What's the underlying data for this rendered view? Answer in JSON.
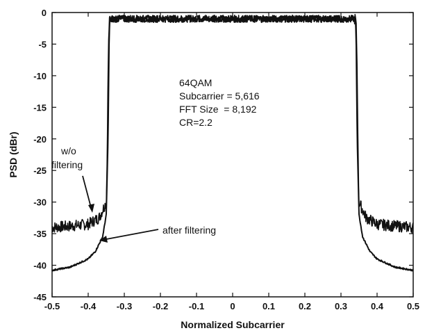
{
  "chart_data": {
    "type": "line",
    "title": "",
    "xlabel": "Normalized Subcarrier",
    "ylabel": "PSD (dBr)",
    "xlim": [
      -0.5,
      0.5
    ],
    "ylim": [
      -45,
      0
    ],
    "xticks": [
      "-0.5",
      "-0.4",
      "-0.3",
      "-0.2",
      "-0.1",
      "0",
      "0.1",
      "0.2",
      "0.3",
      "0.4",
      "0.5"
    ],
    "yticks": [
      "0",
      "-5",
      "-10",
      "-15",
      "-20",
      "-25",
      "-30",
      "-35",
      "-40",
      "-45"
    ],
    "grid": false,
    "legend": "none",
    "series": [
      {
        "name": "w/o filtering",
        "x": [
          -0.5,
          -0.45,
          -0.4,
          -0.37,
          -0.35,
          -0.348,
          -0.346,
          -0.344,
          -0.342,
          -0.34,
          -0.3,
          -0.2,
          -0.1,
          0,
          0.1,
          0.2,
          0.3,
          0.34,
          0.342,
          0.344,
          0.346,
          0.348,
          0.35,
          0.37,
          0.4,
          0.45,
          0.5
        ],
        "y": [
          -34.0,
          -33.8,
          -33.5,
          -32.5,
          -30.0,
          -25.0,
          -15.0,
          -6.0,
          -2.0,
          -1.0,
          -1.0,
          -1.0,
          -1.0,
          -1.0,
          -1.0,
          -1.0,
          -1.0,
          -1.0,
          -2.0,
          -6.0,
          -15.0,
          -25.0,
          -30.0,
          -32.5,
          -33.5,
          -33.8,
          -34.0
        ]
      },
      {
        "name": "after filtering",
        "x": [
          -0.5,
          -0.45,
          -0.4,
          -0.38,
          -0.36,
          -0.35,
          -0.345,
          -0.342,
          -0.34,
          0.34,
          0.342,
          0.345,
          0.35,
          0.36,
          0.38,
          0.4,
          0.45,
          0.5
        ],
        "y": [
          -40.8,
          -40.3,
          -39.0,
          -37.8,
          -35.5,
          -32.0,
          -20.0,
          -4.0,
          -1.0,
          -1.0,
          -4.0,
          -20.0,
          -32.0,
          -35.5,
          -37.8,
          -39.0,
          -40.3,
          -40.8
        ]
      }
    ],
    "annotations": {
      "info_lines": [
        "64QAM",
        "Subcarrier = 5,616",
        "FFT Size  = 8,192",
        "CR=2.2"
      ],
      "wo_filtering": [
        "w/o",
        "filtering"
      ],
      "after_filtering": "after filtering"
    }
  }
}
